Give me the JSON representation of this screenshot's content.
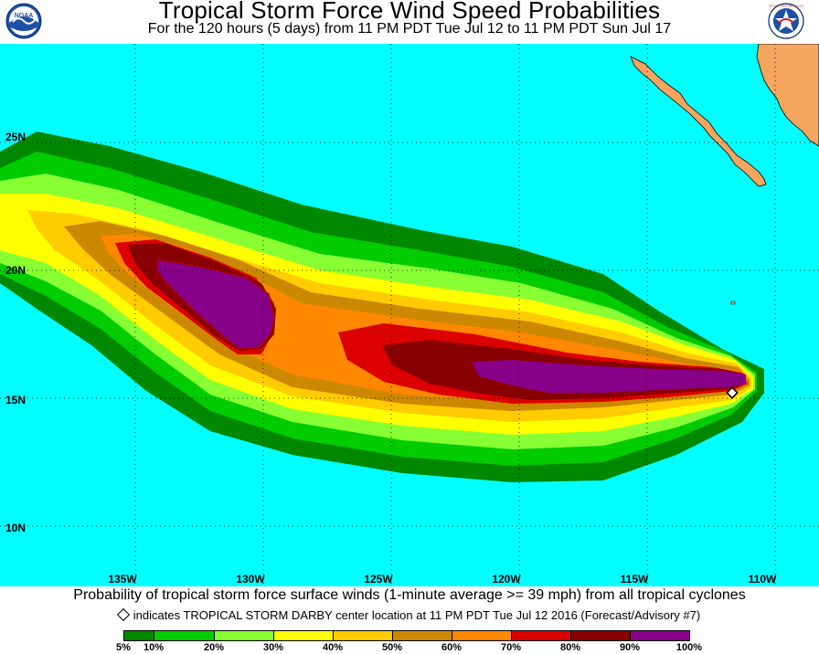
{
  "header": {
    "title": "Tropical Storm Force Wind Speed Probabilities",
    "subtitle": "For the 120 hours (5 days) from 11 PM PDT Tue Jul 12 to 11 PM PDT Sun Jul 17",
    "logo_left": "NOAA",
    "logo_right": "NATIONAL WEATHER SERVICE"
  },
  "map": {
    "ocean_color": "#00ffff",
    "land_color": "#f5a55e",
    "lon_labels": [
      "135W",
      "130W",
      "125W",
      "120W",
      "115W",
      "110W"
    ],
    "lat_labels": [
      "25N",
      "20N",
      "15N",
      "10N"
    ],
    "storm_center_lon": -110.5,
    "storm_center_lat": 15.3
  },
  "caption": {
    "text": "Probability of tropical storm force surface winds (1-minute average >= 39 mph) from all tropical cyclones",
    "note": "indicates TROPICAL STORM DARBY center location at 11 PM PDT Tue Jul 12 2016 (Forecast/Advisory #7)"
  },
  "legend": {
    "bins": [
      {
        "color": "#008800"
      },
      {
        "color": "#00cc00"
      },
      {
        "color": "#88ff33"
      },
      {
        "color": "#ffff00"
      },
      {
        "color": "#ffcc00"
      },
      {
        "color": "#cc8800"
      },
      {
        "color": "#ff8800"
      },
      {
        "color": "#dd0000"
      },
      {
        "color": "#880000"
      },
      {
        "color": "#880088"
      }
    ],
    "labels": [
      "5%",
      "10%",
      "20%",
      "30%",
      "40%",
      "50%",
      "60%",
      "70%",
      "80%",
      "90%",
      "100%"
    ]
  }
}
